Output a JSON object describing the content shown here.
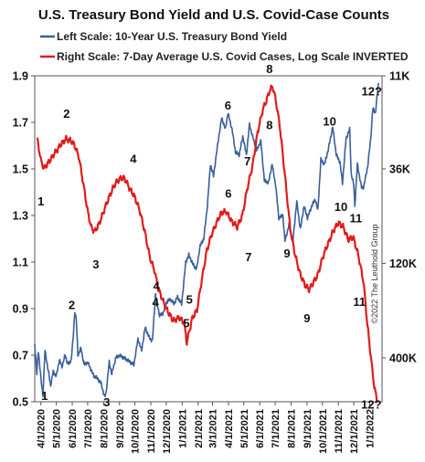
{
  "chart_data": {
    "type": "line",
    "title": "U.S. Treasury Bond Yield and U.S. Covid-Case Counts",
    "credit": "©2022 The Leuthold Group",
    "legend": {
      "placement": "top",
      "entries": [
        {
          "label": "Left Scale: 10-Year U.S. Treasury Bond Yield",
          "color": "#3a5f9c"
        },
        {
          "label": "Right Scale: 7-Day Average U.S. Covid Cases, Log Scale INVERTED",
          "color": "#e01b1b"
        }
      ]
    },
    "x_axis": {
      "type": "date",
      "range": [
        "2020-03-20",
        "2022-01-25"
      ],
      "tick_labels": [
        "4/1/2020",
        "5/1/2020",
        "6/1/2020",
        "7/1/2020",
        "8/1/2020",
        "9/1/2020",
        "10/1/2020",
        "11/1/2020",
        "12/1/2020",
        "1/1/2021",
        "2/1/2021",
        "3/1/2021",
        "4/1/2021",
        "5/1/2021",
        "6/1/2021",
        "7/1/2021",
        "8/1/2021",
        "9/1/2021",
        "10/1/2021",
        "11/1/2021",
        "12/1/2021",
        "1/1/2022"
      ],
      "tick_dates": [
        "2020-04-01",
        "2020-05-01",
        "2020-06-01",
        "2020-07-01",
        "2020-08-01",
        "2020-09-01",
        "2020-10-01",
        "2020-11-01",
        "2020-12-01",
        "2021-01-01",
        "2021-02-01",
        "2021-03-01",
        "2021-04-01",
        "2021-05-01",
        "2021-06-01",
        "2021-07-01",
        "2021-08-01",
        "2021-09-01",
        "2021-10-01",
        "2021-11-01",
        "2021-12-01",
        "2022-01-01"
      ]
    },
    "y_left": {
      "range": [
        0.5,
        1.9
      ],
      "ticks": [
        0.5,
        0.7,
        0.9,
        1.1,
        1.3,
        1.5,
        1.7,
        1.9
      ],
      "tick_labels": [
        "0.5",
        "0.7",
        "0.9",
        "1.1",
        "1.3",
        "1.5",
        "1.7",
        "1.9"
      ]
    },
    "y_right": {
      "scale": "log",
      "inverted": true,
      "range": [
        11000,
        700000
      ],
      "ticks": [
        11000,
        36000,
        120000,
        400000
      ],
      "tick_labels": [
        "11K",
        "36K",
        "120K",
        "400K"
      ]
    },
    "grid": false,
    "series": [
      {
        "name": "Left Scale: 10-Year U.S. Treasury Bond Yield",
        "axis": "left",
        "color": "#3a5f9c",
        "points": [
          [
            "2020-03-20",
            0.75
          ],
          [
            "2020-03-24",
            0.62
          ],
          [
            "2020-03-27",
            0.72
          ],
          [
            "2020-04-01",
            0.6
          ],
          [
            "2020-04-05",
            0.53
          ],
          [
            "2020-04-09",
            0.72
          ],
          [
            "2020-04-14",
            0.65
          ],
          [
            "2020-04-20",
            0.57
          ],
          [
            "2020-04-25",
            0.63
          ],
          [
            "2020-05-01",
            0.61
          ],
          [
            "2020-05-07",
            0.68
          ],
          [
            "2020-05-12",
            0.65
          ],
          [
            "2020-05-18",
            0.7
          ],
          [
            "2020-05-24",
            0.66
          ],
          [
            "2020-05-30",
            0.68
          ],
          [
            "2020-06-03",
            0.78
          ],
          [
            "2020-06-06",
            0.89
          ],
          [
            "2020-06-09",
            0.85
          ],
          [
            "2020-06-12",
            0.7
          ],
          [
            "2020-06-18",
            0.73
          ],
          [
            "2020-06-24",
            0.66
          ],
          [
            "2020-07-01",
            0.67
          ],
          [
            "2020-07-07",
            0.64
          ],
          [
            "2020-07-13",
            0.61
          ],
          [
            "2020-07-20",
            0.6
          ],
          [
            "2020-07-27",
            0.58
          ],
          [
            "2020-08-03",
            0.52
          ],
          [
            "2020-08-06",
            0.54
          ],
          [
            "2020-08-12",
            0.67
          ],
          [
            "2020-08-17",
            0.62
          ],
          [
            "2020-08-25",
            0.69
          ],
          [
            "2020-09-01",
            0.7
          ],
          [
            "2020-09-08",
            0.69
          ],
          [
            "2020-09-15",
            0.68
          ],
          [
            "2020-09-22",
            0.67
          ],
          [
            "2020-09-29",
            0.66
          ],
          [
            "2020-10-07",
            0.77
          ],
          [
            "2020-10-14",
            0.72
          ],
          [
            "2020-10-21",
            0.82
          ],
          [
            "2020-10-28",
            0.78
          ],
          [
            "2020-11-04",
            0.76
          ],
          [
            "2020-11-10",
            0.96
          ],
          [
            "2020-11-18",
            0.87
          ],
          [
            "2020-11-25",
            0.88
          ],
          [
            "2020-12-02",
            0.93
          ],
          [
            "2020-12-09",
            0.94
          ],
          [
            "2020-12-16",
            0.92
          ],
          [
            "2020-12-23",
            0.95
          ],
          [
            "2020-12-31",
            0.92
          ],
          [
            "2021-01-08",
            1.1
          ],
          [
            "2021-01-14",
            1.13
          ],
          [
            "2021-01-22",
            1.09
          ],
          [
            "2021-01-29",
            1.07
          ],
          [
            "2021-02-05",
            1.17
          ],
          [
            "2021-02-12",
            1.2
          ],
          [
            "2021-02-19",
            1.34
          ],
          [
            "2021-02-25",
            1.52
          ],
          [
            "2021-03-03",
            1.47
          ],
          [
            "2021-03-12",
            1.62
          ],
          [
            "2021-03-19",
            1.72
          ],
          [
            "2021-03-26",
            1.67
          ],
          [
            "2021-03-31",
            1.74
          ],
          [
            "2021-04-08",
            1.67
          ],
          [
            "2021-04-15",
            1.57
          ],
          [
            "2021-04-22",
            1.56
          ],
          [
            "2021-04-29",
            1.64
          ],
          [
            "2021-05-06",
            1.56
          ],
          [
            "2021-05-12",
            1.69
          ],
          [
            "2021-05-18",
            1.64
          ],
          [
            "2021-05-26",
            1.58
          ],
          [
            "2021-06-03",
            1.62
          ],
          [
            "2021-06-10",
            1.45
          ],
          [
            "2021-06-18",
            1.44
          ],
          [
            "2021-06-25",
            1.52
          ],
          [
            "2021-07-02",
            1.43
          ],
          [
            "2021-07-08",
            1.29
          ],
          [
            "2021-07-16",
            1.3
          ],
          [
            "2021-07-20",
            1.19
          ],
          [
            "2021-07-28",
            1.26
          ],
          [
            "2021-08-04",
            1.18
          ],
          [
            "2021-08-12",
            1.36
          ],
          [
            "2021-08-19",
            1.24
          ],
          [
            "2021-08-26",
            1.34
          ],
          [
            "2021-09-02",
            1.29
          ],
          [
            "2021-09-10",
            1.34
          ],
          [
            "2021-09-17",
            1.37
          ],
          [
            "2021-09-22",
            1.32
          ],
          [
            "2021-09-28",
            1.54
          ],
          [
            "2021-10-05",
            1.52
          ],
          [
            "2021-10-12",
            1.58
          ],
          [
            "2021-10-21",
            1.68
          ],
          [
            "2021-10-28",
            1.56
          ],
          [
            "2021-11-04",
            1.53
          ],
          [
            "2021-11-09",
            1.44
          ],
          [
            "2021-11-16",
            1.63
          ],
          [
            "2021-11-23",
            1.67
          ],
          [
            "2021-11-26",
            1.48
          ],
          [
            "2021-12-01",
            1.43
          ],
          [
            "2021-12-03",
            1.34
          ],
          [
            "2021-12-08",
            1.52
          ],
          [
            "2021-12-16",
            1.42
          ],
          [
            "2021-12-20",
            1.42
          ],
          [
            "2021-12-28",
            1.51
          ],
          [
            "2022-01-03",
            1.63
          ],
          [
            "2022-01-07",
            1.76
          ],
          [
            "2022-01-12",
            1.74
          ],
          [
            "2022-01-18",
            1.87
          ]
        ]
      },
      {
        "name": "Right Scale: 7-Day Average U.S. Covid Cases, Log Scale INVERTED",
        "axis": "right",
        "color": "#e01b1b",
        "points": [
          [
            "2020-03-25",
            24600
          ],
          [
            "2020-04-01",
            32400
          ],
          [
            "2020-04-07",
            35800
          ],
          [
            "2020-04-14",
            33700
          ],
          [
            "2020-04-20",
            31900
          ],
          [
            "2020-04-28",
            29400
          ],
          [
            "2020-05-05",
            27700
          ],
          [
            "2020-05-12",
            25900
          ],
          [
            "2020-05-20",
            24600
          ],
          [
            "2020-05-28",
            25000
          ],
          [
            "2020-06-05",
            26400
          ],
          [
            "2020-06-14",
            31000
          ],
          [
            "2020-06-22",
            42600
          ],
          [
            "2020-07-01",
            61800
          ],
          [
            "2020-07-08",
            76000
          ],
          [
            "2020-07-15",
            80100
          ],
          [
            "2020-07-22",
            73800
          ],
          [
            "2020-07-29",
            65700
          ],
          [
            "2020-08-05",
            57800
          ],
          [
            "2020-08-12",
            51500
          ],
          [
            "2020-08-19",
            46100
          ],
          [
            "2020-08-26",
            42600
          ],
          [
            "2020-09-02",
            40800
          ],
          [
            "2020-09-10",
            40300
          ],
          [
            "2020-09-20",
            45800
          ],
          [
            "2020-09-30",
            51100
          ],
          [
            "2020-10-10",
            60700
          ],
          [
            "2020-10-20",
            79700
          ],
          [
            "2020-10-30",
            111200
          ],
          [
            "2020-11-08",
            131100
          ],
          [
            "2020-11-15",
            164300
          ],
          [
            "2020-11-25",
            195100
          ],
          [
            "2020-12-05",
            224600
          ],
          [
            "2020-12-15",
            250000
          ],
          [
            "2020-12-26",
            239000
          ],
          [
            "2021-01-05",
            256300
          ],
          [
            "2021-01-10",
            329300
          ],
          [
            "2021-01-20",
            245000
          ],
          [
            "2021-01-30",
            216000
          ],
          [
            "2021-02-08",
            149100
          ],
          [
            "2021-02-18",
            101600
          ],
          [
            "2021-02-27",
            83600
          ],
          [
            "2021-03-08",
            72500
          ],
          [
            "2021-03-18",
            63000
          ],
          [
            "2021-03-28",
            62000
          ],
          [
            "2021-04-07",
            70100
          ],
          [
            "2021-04-18",
            75400
          ],
          [
            "2021-04-28",
            65400
          ],
          [
            "2021-05-08",
            45900
          ],
          [
            "2021-05-18",
            34500
          ],
          [
            "2021-05-28",
            22500
          ],
          [
            "2021-06-07",
            16900
          ],
          [
            "2021-06-14",
            15100
          ],
          [
            "2021-06-20",
            13300
          ],
          [
            "2021-06-26",
            12600
          ],
          [
            "2021-07-02",
            14900
          ],
          [
            "2021-07-10",
            20800
          ],
          [
            "2021-07-20",
            39200
          ],
          [
            "2021-07-30",
            76000
          ],
          [
            "2021-08-09",
            108800
          ],
          [
            "2021-08-19",
            138700
          ],
          [
            "2021-08-29",
            160000
          ],
          [
            "2021-09-05",
            167500
          ],
          [
            "2021-09-12",
            155500
          ],
          [
            "2021-09-22",
            138700
          ],
          [
            "2021-10-02",
            110000
          ],
          [
            "2021-10-12",
            93300
          ],
          [
            "2021-10-22",
            79400
          ],
          [
            "2021-11-01",
            71700
          ],
          [
            "2021-11-10",
            75000
          ],
          [
            "2021-11-20",
            88500
          ],
          [
            "2021-11-30",
            86300
          ],
          [
            "2021-12-10",
            108800
          ],
          [
            "2021-12-20",
            152100
          ],
          [
            "2021-12-27",
            253400
          ],
          [
            "2022-01-03",
            390100
          ],
          [
            "2022-01-10",
            579700
          ],
          [
            "2022-01-16",
            704100
          ]
        ]
      }
    ],
    "annotations": [
      {
        "text": "1",
        "series": "left",
        "x": "2020-04-08",
        "y": 0.527
      },
      {
        "text": "2",
        "series": "left",
        "x": "2020-05-31",
        "y": 0.918
      },
      {
        "text": "3",
        "series": "left",
        "x": "2020-08-07",
        "y": 0.5
      },
      {
        "text": "4",
        "series": "left",
        "x": "2020-11-12",
        "y": 1.0
      },
      {
        "text": "5",
        "series": "left",
        "x": "2021-01-15",
        "y": 0.942
      },
      {
        "text": "6",
        "series": "left",
        "x": "2021-03-31",
        "y": 1.775
      },
      {
        "text": "7",
        "series": "left",
        "x": "2021-05-08",
        "y": 1.535
      },
      {
        "text": "8",
        "series": "left",
        "x": "2021-06-20",
        "y": 1.69
      },
      {
        "text": "9",
        "series": "left",
        "x": "2021-07-24",
        "y": 1.14
      },
      {
        "text": "10",
        "series": "left",
        "x": "2021-10-15",
        "y": 1.705
      },
      {
        "text": "11",
        "series": "left",
        "x": "2021-12-05",
        "y": 1.29
      },
      {
        "text": "12?",
        "series": "left",
        "x": "2022-01-05",
        "y": 1.835
      },
      {
        "text": "1",
        "series": "right",
        "x": "2020-04-01",
        "y": 54000
      },
      {
        "text": "2",
        "series": "right",
        "x": "2020-05-21",
        "y": 17700
      },
      {
        "text": "3",
        "series": "right",
        "x": "2020-07-17",
        "y": 121000
      },
      {
        "text": "4",
        "series": "right",
        "x": "2020-09-28",
        "y": 31500
      },
      {
        "text": "4",
        "series": "right",
        "x": "2020-11-10",
        "y": 196000
      },
      {
        "text": "5",
        "series": "right",
        "x": "2021-01-09",
        "y": 256000
      },
      {
        "text": "6",
        "series": "right",
        "x": "2021-04-01",
        "y": 49000
      },
      {
        "text": "7",
        "series": "right",
        "x": "2021-05-10",
        "y": 110000
      },
      {
        "text": "8",
        "series": "right",
        "x": "2021-06-20",
        "y": 10000
      },
      {
        "text": "9",
        "series": "right",
        "x": "2021-09-01",
        "y": 240000
      },
      {
        "text": "10",
        "series": "right",
        "x": "2021-11-06",
        "y": 58000
      },
      {
        "text": "11",
        "series": "right",
        "x": "2021-12-12",
        "y": 195000
      },
      {
        "text": "12?",
        "series": "right",
        "x": "2022-01-04",
        "y": 720000
      }
    ]
  }
}
